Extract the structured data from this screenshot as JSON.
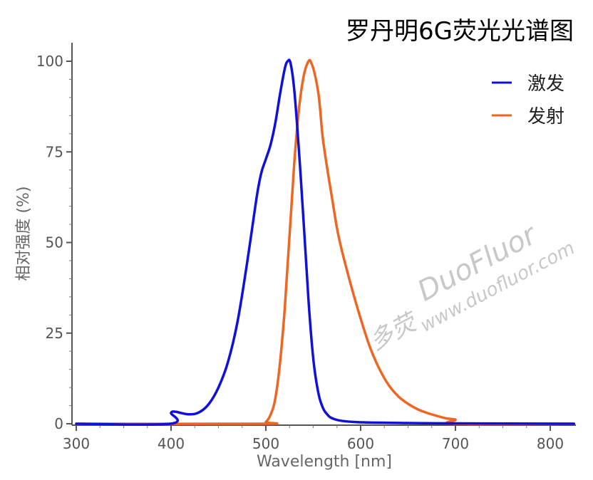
{
  "chart_data": {
    "type": "line",
    "title": "罗丹明6G荧光光谱图",
    "xlabel": "Wavelength [nm]",
    "ylabel": "相对强度 (%)",
    "xlim": [
      300,
      825
    ],
    "ylim": [
      0,
      105
    ],
    "x_ticks": [
      300,
      400,
      500,
      600,
      700,
      800
    ],
    "y_ticks": [
      0,
      25,
      50,
      75,
      100
    ],
    "x_tick_labels": [
      "300",
      "400",
      "500",
      "600",
      "700",
      "800"
    ],
    "y_tick_labels": [
      "0",
      "25",
      "50",
      "75",
      "100"
    ],
    "grid": false,
    "legend_position": "top-right",
    "series": [
      {
        "name": "激发",
        "color": "#1010dd",
        "x": [
          300,
          399,
          400,
          405,
          410,
          420,
          430,
          440,
          450,
          460,
          470,
          480,
          490,
          495,
          500,
          505,
          510,
          515,
          520,
          523,
          526,
          530,
          535,
          540,
          545,
          550,
          555,
          560,
          565,
          570,
          580,
          600,
          650,
          700,
          825
        ],
        "y": [
          0,
          0,
          3,
          3.3,
          3,
          2.6,
          3.2,
          5.5,
          10,
          17,
          28,
          44,
          62,
          69,
          73,
          77,
          83,
          91,
          98,
          100,
          99.5,
          92,
          75,
          55,
          34,
          18,
          9,
          4.5,
          2.5,
          1.5,
          0.8,
          0.4,
          0.2,
          0.1,
          0
        ]
      },
      {
        "name": "发射",
        "color": "#ee6622",
        "x": [
          300,
          495,
          500,
          505,
          510,
          515,
          520,
          525,
          530,
          535,
          540,
          545,
          548,
          552,
          556,
          560,
          565,
          570,
          575,
          580,
          590,
          600,
          610,
          620,
          630,
          640,
          650,
          660,
          670,
          680,
          690,
          699,
          700,
          701,
          825
        ],
        "y": [
          0,
          0,
          0.5,
          2.5,
          7,
          17,
          32,
          52,
          72,
          87,
          96,
          100,
          99.5,
          96,
          90,
          79,
          70,
          62,
          54,
          48,
          38,
          29,
          21,
          15,
          10.5,
          7.5,
          5.5,
          4,
          3,
          2.2,
          1.5,
          1.2,
          1,
          0,
          0
        ]
      }
    ]
  },
  "watermark": {
    "brand": "DuoFluor",
    "site": "www.duofluor.com",
    "seal": "多荧"
  }
}
